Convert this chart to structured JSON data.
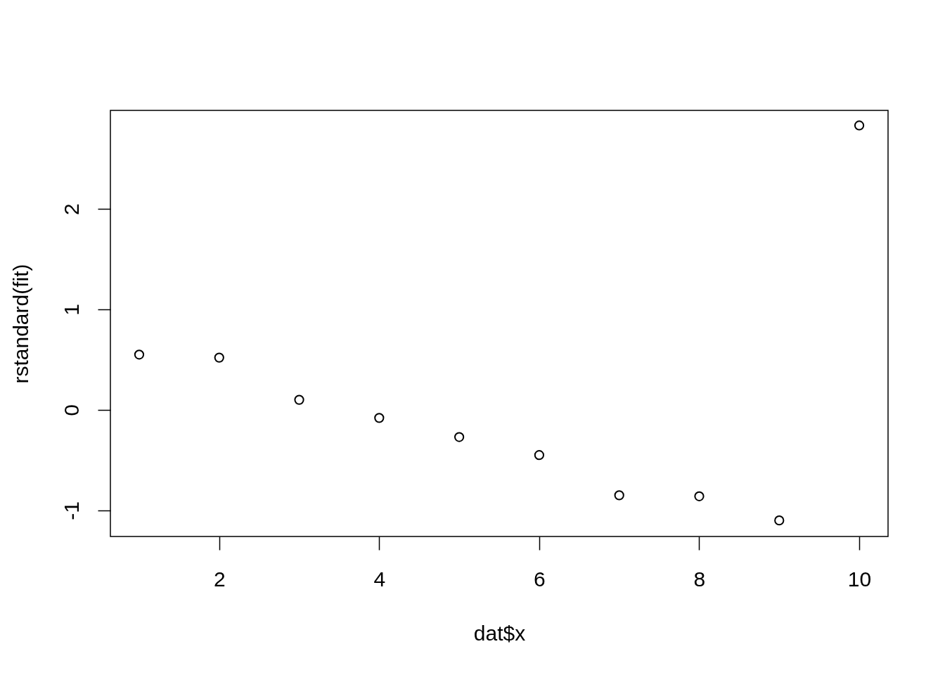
{
  "chart_data": {
    "type": "scatter",
    "xlabel": "dat$x",
    "ylabel": "rstandard(fit)",
    "x": [
      1,
      2,
      3,
      4,
      5,
      6,
      7,
      8,
      9,
      10
    ],
    "series": [
      {
        "color": "#000000",
        "values": [
          0.55,
          0.52,
          0.1,
          -0.08,
          -0.27,
          -0.45,
          -0.85,
          -0.86,
          -1.1,
          2.83
        ]
      }
    ],
    "xlim": [
      0.64,
      10.36
    ],
    "ylim": [
      -1.26,
      2.98
    ],
    "xticks": [
      2,
      4,
      6,
      8,
      10
    ],
    "yticks": [
      -1,
      0,
      1,
      2
    ],
    "marker": "circle",
    "grid": false
  }
}
